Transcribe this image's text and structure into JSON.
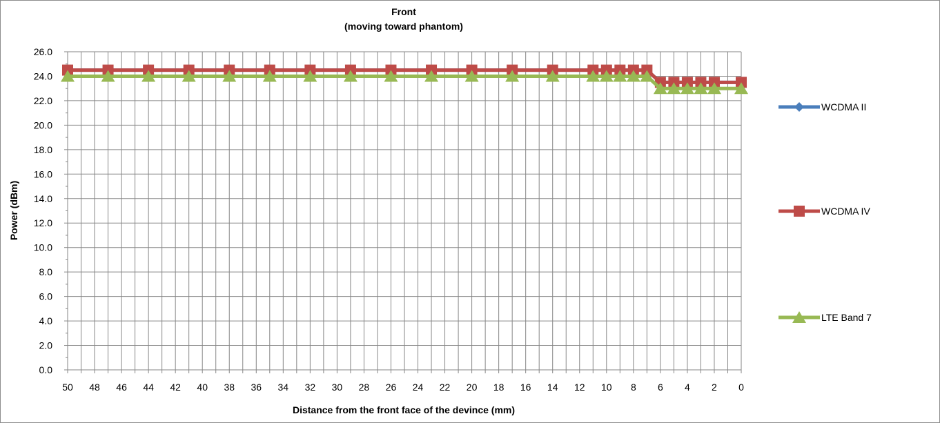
{
  "chart_data": {
    "type": "line",
    "title": "Front",
    "subtitle": "(moving toward phantom)",
    "xlabel": "Distance from the front face of the devince (mm)",
    "ylabel": "Power (dBm)",
    "ylim": [
      0,
      26
    ],
    "xlim": [
      50,
      0
    ],
    "x_reversed": true,
    "grid": true,
    "legend_position": "right",
    "y_ticks": [
      "0.0",
      "2.0",
      "4.0",
      "6.0",
      "8.0",
      "10.0",
      "12.0",
      "14.0",
      "16.0",
      "18.0",
      "20.0",
      "22.0",
      "24.0",
      "26.0"
    ],
    "x_ticks": [
      "50",
      "48",
      "46",
      "44",
      "42",
      "40",
      "38",
      "36",
      "34",
      "32",
      "30",
      "28",
      "26",
      "24",
      "22",
      "20",
      "18",
      "16",
      "14",
      "12",
      "10",
      "8",
      "6",
      "4",
      "2",
      "0"
    ],
    "x": [
      50,
      47,
      44,
      41,
      38,
      35,
      32,
      29,
      26,
      23,
      20,
      17,
      14,
      11,
      10,
      9,
      8,
      7,
      6,
      5,
      4,
      3,
      2,
      0
    ],
    "series": [
      {
        "name": "WCDMA II",
        "color": "#4a7ebb",
        "marker": "diamond",
        "values": [
          24.5,
          24.5,
          24.5,
          24.5,
          24.5,
          24.5,
          24.5,
          24.5,
          24.5,
          24.5,
          24.5,
          24.5,
          24.5,
          24.5,
          24.5,
          24.5,
          24.5,
          24.5,
          23.5,
          23.5,
          23.5,
          23.5,
          23.5,
          23.5
        ]
      },
      {
        "name": "WCDMA IV",
        "color": "#be4b48",
        "marker": "square",
        "values": [
          24.5,
          24.5,
          24.5,
          24.5,
          24.5,
          24.5,
          24.5,
          24.5,
          24.5,
          24.5,
          24.5,
          24.5,
          24.5,
          24.5,
          24.5,
          24.5,
          24.5,
          24.5,
          23.5,
          23.5,
          23.5,
          23.5,
          23.5,
          23.5
        ]
      },
      {
        "name": "LTE Band 7",
        "color": "#98b954",
        "marker": "triangle",
        "values": [
          24.0,
          24.0,
          24.0,
          24.0,
          24.0,
          24.0,
          24.0,
          24.0,
          24.0,
          24.0,
          24.0,
          24.0,
          24.0,
          24.0,
          24.0,
          24.0,
          24.0,
          24.0,
          23.0,
          23.0,
          23.0,
          23.0,
          23.0,
          23.0
        ]
      }
    ]
  }
}
